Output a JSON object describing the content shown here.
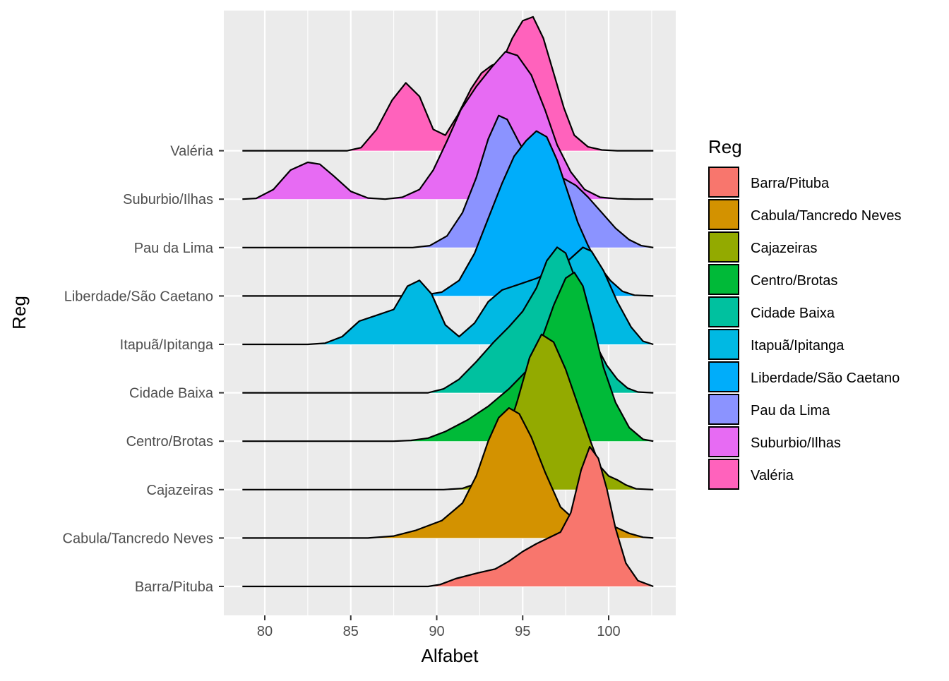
{
  "chart_data": {
    "type": "ridgeline",
    "xlabel": "Alfabet",
    "ylabel": "Reg",
    "xlim": [
      77.6,
      103.8
    ],
    "x_ticks": [
      80,
      85,
      90,
      95,
      100
    ],
    "x_tick_labels": [
      "80",
      "85",
      "90",
      "95",
      "100"
    ],
    "grid": true,
    "legend": {
      "title": "Reg",
      "position": "right"
    },
    "categories": [
      "Barra/Pituba",
      "Cabula/Tancredo Neves",
      "Cajazeiras",
      "Centro/Brotas",
      "Cidade Baixa",
      "Itapuã/Ipitanga",
      "Liberdade/São Caetano",
      "Pau da Lima",
      "Suburbio/Ilhas",
      "Valéria"
    ],
    "series": [
      {
        "name": "Barra/Pituba",
        "color": "#F8766D",
        "x": [
          78.7,
          89.5,
          90.2,
          91.1,
          92.4,
          93.4,
          94.2,
          95.0,
          95.8,
          96.5,
          97.2,
          97.8,
          98.4,
          98.9,
          99.4,
          99.9,
          100.4,
          101.0,
          101.7,
          102.6
        ],
        "y": [
          0.0,
          0.0,
          0.05,
          0.2,
          0.35,
          0.45,
          0.65,
          0.9,
          1.1,
          1.25,
          1.4,
          1.9,
          3.0,
          3.6,
          3.3,
          2.5,
          1.5,
          0.6,
          0.15,
          0.0
        ]
      },
      {
        "name": "Cabula/Tancredo Neves",
        "color": "#D39200",
        "x": [
          78.7,
          86.0,
          87.5,
          88.8,
          90.3,
          91.5,
          92.3,
          93.0,
          93.6,
          94.2,
          94.8,
          95.5,
          96.3,
          97.2,
          98.2,
          99.3,
          100.3,
          101.2,
          102.0,
          102.6
        ],
        "y": [
          0.0,
          0.0,
          0.05,
          0.2,
          0.45,
          0.9,
          1.6,
          2.5,
          3.1,
          3.35,
          3.2,
          2.6,
          1.7,
          0.8,
          0.4,
          0.35,
          0.3,
          0.12,
          0.02,
          0.0
        ]
      },
      {
        "name": "Cajazeiras",
        "color": "#93AA00",
        "x": [
          78.7,
          90.4,
          91.5,
          92.6,
          93.7,
          94.7,
          95.4,
          96.1,
          96.8,
          97.5,
          98.2,
          98.9,
          99.5,
          100.0,
          100.5,
          101.0,
          101.6,
          102.6
        ],
        "y": [
          0.0,
          0.0,
          0.03,
          0.2,
          0.9,
          2.3,
          3.4,
          4.0,
          3.8,
          3.1,
          2.2,
          1.3,
          0.6,
          0.35,
          0.25,
          0.12,
          0.02,
          0.0
        ]
      },
      {
        "name": "Centro/Brotas",
        "color": "#00BA38",
        "x": [
          78.7,
          87.5,
          88.5,
          89.5,
          90.5,
          91.8,
          93.0,
          94.2,
          95.2,
          96.0,
          96.8,
          97.5,
          98.0,
          98.5,
          99.1,
          99.7,
          100.4,
          101.2,
          102.0,
          102.6
        ],
        "y": [
          0.0,
          0.0,
          0.02,
          0.08,
          0.25,
          0.55,
          0.9,
          1.35,
          1.8,
          2.5,
          3.5,
          4.2,
          4.35,
          4.0,
          3.0,
          1.9,
          1.0,
          0.35,
          0.05,
          0.0
        ]
      },
      {
        "name": "Cidade Baixa",
        "color": "#00C19F",
        "x": [
          78.7,
          89.5,
          90.4,
          91.3,
          92.3,
          93.3,
          94.2,
          95.0,
          95.8,
          96.4,
          97.0,
          97.5,
          98.1,
          98.7,
          99.3,
          99.9,
          100.5,
          101.1,
          101.7,
          102.6
        ],
        "y": [
          0.0,
          0.0,
          0.1,
          0.35,
          0.8,
          1.3,
          1.7,
          2.1,
          2.7,
          3.4,
          3.75,
          3.6,
          2.9,
          2.0,
          1.2,
          0.7,
          0.35,
          0.12,
          0.02,
          0.0
        ]
      },
      {
        "name": "Itapuã/Ipitanga",
        "color": "#00B9E3",
        "x": [
          78.7,
          82.5,
          83.5,
          84.5,
          85.5,
          86.5,
          87.5,
          88.3,
          89.0,
          89.7,
          90.5,
          91.3,
          92.2,
          93.0,
          93.8,
          94.8,
          95.8,
          96.8,
          97.5,
          98.0,
          98.5,
          99.0,
          99.7,
          100.5,
          101.3,
          102.0,
          102.6
        ],
        "y": [
          0.0,
          0.0,
          0.03,
          0.2,
          0.6,
          0.75,
          0.9,
          1.5,
          1.65,
          1.3,
          0.5,
          0.2,
          0.55,
          1.1,
          1.4,
          1.55,
          1.7,
          1.9,
          2.1,
          2.3,
          2.5,
          2.4,
          1.9,
          1.1,
          0.45,
          0.08,
          0.0
        ]
      },
      {
        "name": "Liberdade/São Caetano",
        "color": "#00ADFA",
        "x": [
          78.7,
          88.0,
          89.2,
          90.3,
          91.3,
          92.2,
          93.0,
          93.8,
          94.5,
          95.2,
          95.8,
          96.4,
          97.0,
          97.6,
          98.2,
          98.8,
          99.4,
          100.1,
          100.8,
          101.5,
          102.6
        ],
        "y": [
          0.0,
          0.0,
          0.02,
          0.1,
          0.4,
          1.1,
          2.0,
          2.9,
          3.6,
          4.0,
          4.25,
          4.1,
          3.5,
          2.7,
          1.9,
          1.3,
          0.8,
          0.4,
          0.12,
          0.02,
          0.0
        ]
      },
      {
        "name": "Pau da Lima",
        "color": "#8B93FF",
        "x": [
          78.7,
          88.6,
          89.6,
          90.6,
          91.5,
          92.3,
          93.0,
          93.6,
          94.1,
          94.8,
          95.6,
          96.5,
          97.3,
          98.1,
          98.8,
          99.6,
          100.4,
          101.2,
          101.9,
          102.6
        ],
        "y": [
          0.0,
          0.0,
          0.05,
          0.3,
          0.9,
          1.8,
          2.8,
          3.4,
          3.3,
          2.7,
          2.1,
          1.9,
          1.8,
          1.6,
          1.3,
          0.9,
          0.5,
          0.2,
          0.05,
          0.0
        ]
      },
      {
        "name": "Suburbio/Ilhas",
        "color": "#E76BF3",
        "x": [
          78.7,
          79.5,
          80.5,
          81.5,
          82.5,
          83.2,
          84.0,
          85.0,
          86.0,
          87.0,
          88.0,
          89.0,
          89.8,
          90.6,
          91.4,
          92.3,
          93.2,
          94.0,
          94.7,
          95.5,
          96.3,
          97.0,
          97.8,
          98.6,
          99.5,
          100.5,
          101.5,
          102.6
        ],
        "y": [
          0.0,
          0.02,
          0.25,
          0.75,
          0.95,
          0.9,
          0.6,
          0.2,
          0.03,
          0.0,
          0.05,
          0.25,
          0.75,
          1.5,
          2.3,
          2.9,
          3.4,
          3.8,
          3.7,
          3.2,
          2.3,
          1.4,
          0.7,
          0.25,
          0.05,
          0.01,
          0.0,
          0.0
        ]
      },
      {
        "name": "Valéria",
        "color": "#FF62BC",
        "x": [
          78.7,
          84.8,
          85.6,
          86.5,
          87.4,
          88.2,
          89.0,
          89.8,
          90.5,
          91.2,
          92.0,
          92.6,
          93.2,
          93.8,
          94.4,
          95.0,
          95.6,
          96.2,
          96.8,
          97.4,
          98.0,
          98.8,
          99.6,
          100.5,
          102.6
        ],
        "y": [
          0.0,
          0.0,
          0.08,
          0.55,
          1.3,
          1.75,
          1.4,
          0.55,
          0.4,
          0.9,
          1.6,
          2.0,
          2.2,
          2.3,
          2.9,
          3.35,
          3.45,
          2.9,
          2.0,
          1.1,
          0.4,
          0.1,
          0.02,
          0.0,
          0.0
        ]
      }
    ]
  }
}
